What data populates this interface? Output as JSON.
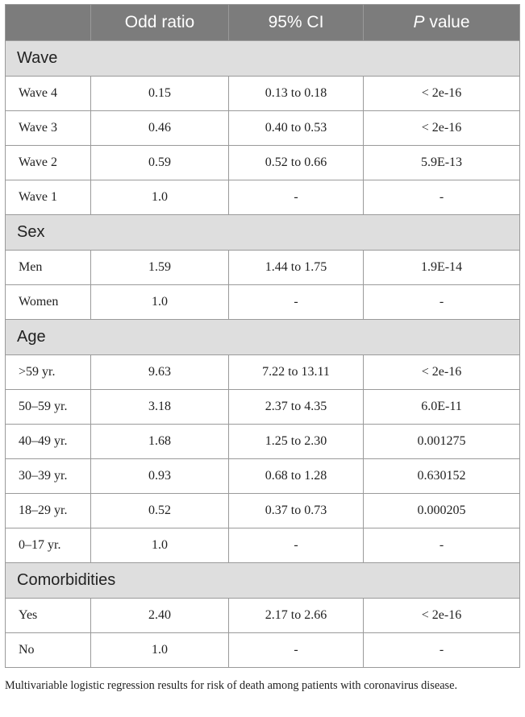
{
  "header": {
    "col1": "",
    "col2": "Odd ratio",
    "col3": "95% CI",
    "col4_italic": "P",
    "col4_rest": " value"
  },
  "sections": [
    {
      "title": "Wave",
      "rows": [
        {
          "label": "Wave 4",
          "or": "0.15",
          "ci": "0.13 to 0.18",
          "p": "< 2e-16"
        },
        {
          "label": "Wave 3",
          "or": "0.46",
          "ci": "0.40 to 0.53",
          "p": "< 2e-16"
        },
        {
          "label": "Wave 2",
          "or": "0.59",
          "ci": "0.52 to 0.66",
          "p": "5.9E-13"
        },
        {
          "label": "Wave 1",
          "or": "1.0",
          "ci": "-",
          "p": "-"
        }
      ]
    },
    {
      "title": "Sex",
      "rows": [
        {
          "label": "Men",
          "or": "1.59",
          "ci": "1.44 to 1.75",
          "p": "1.9E-14"
        },
        {
          "label": "Women",
          "or": "1.0",
          "ci": "-",
          "p": "-"
        }
      ]
    },
    {
      "title": "Age",
      "rows": [
        {
          "label": ">59 yr.",
          "or": "9.63",
          "ci": "7.22 to 13.11",
          "p": "< 2e-16"
        },
        {
          "label": "50–59 yr.",
          "or": "3.18",
          "ci": "2.37 to 4.35",
          "p": "6.0E-11"
        },
        {
          "label": "40–49 yr.",
          "or": "1.68",
          "ci": "1.25 to 2.30",
          "p": "0.001275"
        },
        {
          "label": "30–39 yr.",
          "or": "0.93",
          "ci": "0.68 to 1.28",
          "p": "0.630152"
        },
        {
          "label": "18–29 yr.",
          "or": "0.52",
          "ci": "0.37 to 0.73",
          "p": "0.000205"
        },
        {
          "label": "0–17 yr.",
          "or": "1.0",
          "ci": "-",
          "p": "-"
        }
      ]
    },
    {
      "title": "Comorbidities",
      "rows": [
        {
          "label": "Yes",
          "or": "2.40",
          "ci": "2.17 to 2.66",
          "p": "< 2e-16"
        },
        {
          "label": "No",
          "or": "1.0",
          "ci": "-",
          "p": "-"
        }
      ]
    }
  ],
  "caption": "Multivariable logistic regression results for risk of death among patients with coronavirus disease."
}
